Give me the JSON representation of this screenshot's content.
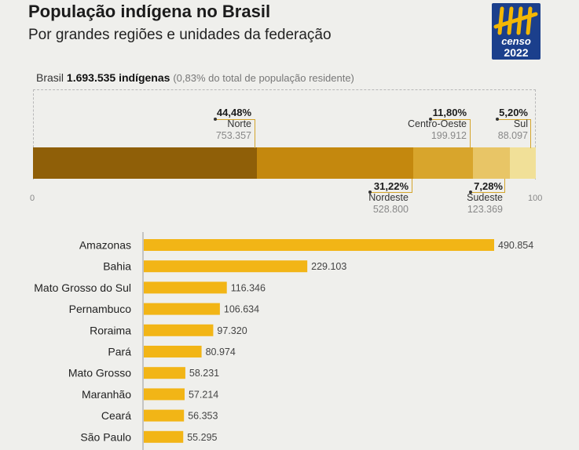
{
  "header": {
    "title": "População indígena no Brasil",
    "subtitle": "Por grandes regiões e unidades da federação"
  },
  "logo": {
    "text_top": "censo",
    "text_bottom": "2022",
    "bg_color": "#1b3f8c",
    "accent_color": "#f2b705"
  },
  "summary": {
    "country": "Brasil",
    "total": "1.693.535 indígenas",
    "share_note": "(0,83% do total de população residente)"
  },
  "chart_data": [
    {
      "type": "bar",
      "stacked": true,
      "orientation": "horizontal",
      "axis_min_label": "0",
      "axis_max_label": "100",
      "xlim": [
        0,
        100
      ],
      "series": [
        {
          "name": "Norte",
          "percent_label": "44,48%",
          "percent": 44.48,
          "value_label": "753.357",
          "color": "#8f5f08"
        },
        {
          "name": "Nordeste",
          "percent_label": "31,22%",
          "percent": 31.22,
          "value_label": "528.800",
          "color": "#c4880e"
        },
        {
          "name": "Centro-Oeste",
          "percent_label": "11,80%",
          "percent": 11.8,
          "value_label": "199.912",
          "color": "#d8a52c"
        },
        {
          "name": "Sudeste",
          "percent_label": "7,28%",
          "percent": 7.28,
          "value_label": "123.369",
          "color": "#e8c566"
        },
        {
          "name": "Sul",
          "percent_label": "5,20%",
          "percent": 5.2,
          "value_label": "88.097",
          "color": "#f1e098"
        }
      ]
    },
    {
      "type": "bar",
      "orientation": "horizontal",
      "categories": [
        "Amazonas",
        "Bahia",
        "Mato Grosso do Sul",
        "Pernambuco",
        "Roraima",
        "Pará",
        "Mato Grosso",
        "Maranhão",
        "Ceará",
        "São Paulo"
      ],
      "values": [
        490854,
        229103,
        116346,
        106634,
        97320,
        80974,
        58231,
        57214,
        56353,
        55295
      ],
      "value_labels": [
        "490.854",
        "229.103",
        "116.346",
        "106.634",
        "97.320",
        "80.974",
        "58.231",
        "57.214",
        "56.353",
        "55.295"
      ],
      "bar_color": "#f2b516",
      "xlim": [
        0,
        490854
      ]
    }
  ]
}
